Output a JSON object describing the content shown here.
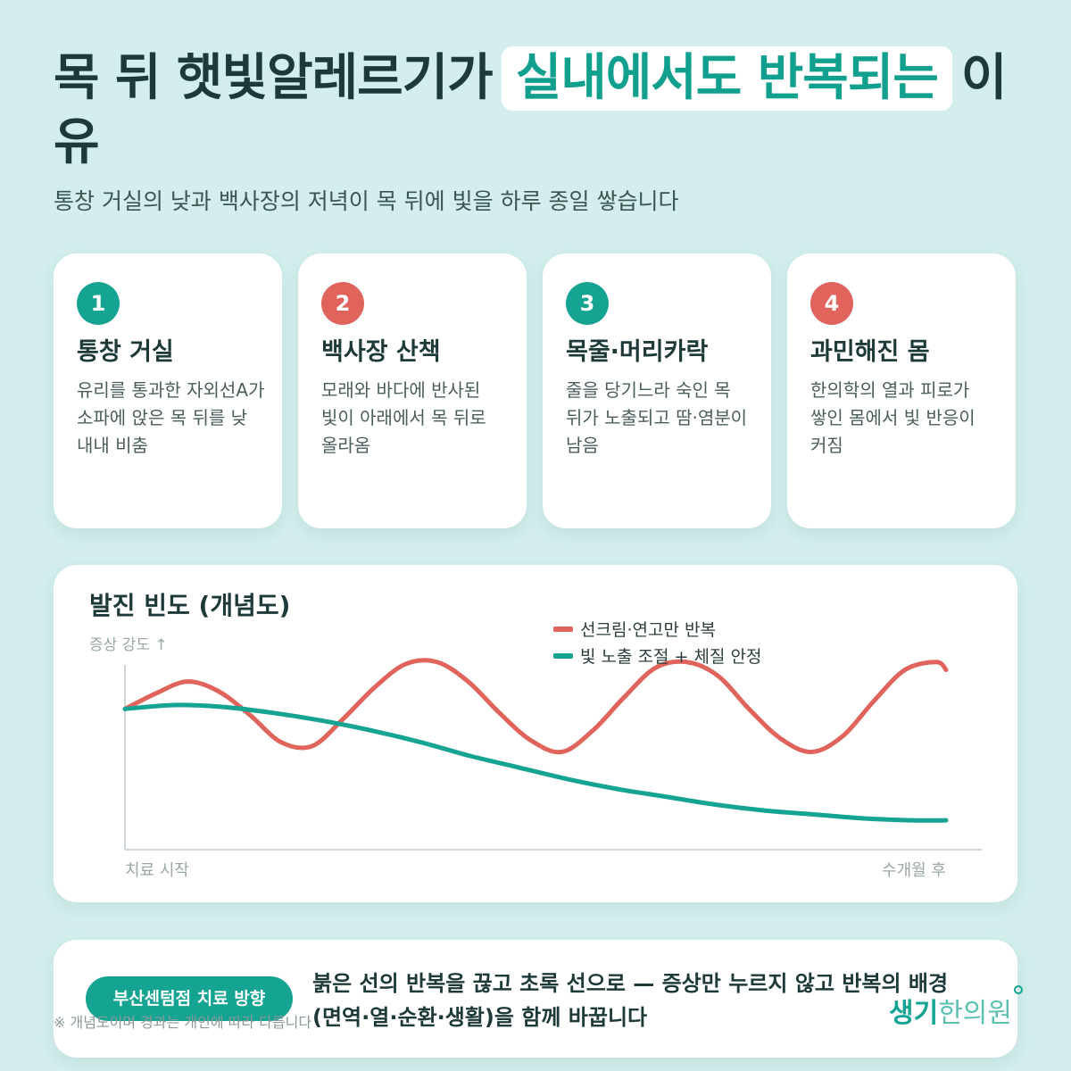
{
  "header": {
    "title_before": "목 뒤 햇빛알레르기가",
    "title_highlight": "실내에서도 반복되는",
    "title_after": "이유",
    "subtitle": "통창 거실의 낮과 백사장의 저녁이 목 뒤에 빛을 하루 종일 쌓습니다"
  },
  "cards": [
    {
      "number": "1",
      "title": "통창 거실",
      "desc": "유리를 통과한 자외선A가 소파에 앉은 목 뒤를 낮 내내 비춤",
      "color": "#15a392"
    },
    {
      "number": "2",
      "title": "백사장 산책",
      "desc": "모래와 바다에 반사된 빛이 아래에서 목 뒤로 올라옴",
      "color": "#e0635c"
    },
    {
      "number": "3",
      "title": "목줄·머리카락",
      "desc": "줄을 당기느라 숙인 목 뒤가 노출되고 땀·염분이 남음",
      "color": "#15a392"
    },
    {
      "number": "4",
      "title": "과민해진 몸",
      "desc": "한의학의 열과 피로가 쌓인 몸에서 빛 반응이 커짐",
      "color": "#e0635c"
    }
  ],
  "chart": {
    "title": "발진 빈도 (개념도)"
  },
  "chart_data": {
    "type": "line",
    "title": "발진 빈도 (개념도)",
    "ylabel": "증상 강도 ↑",
    "x_start_label": "치료 시작",
    "x_end_label": "수개월 후",
    "xlim": [
      0,
      1
    ],
    "ylim": [
      0,
      1
    ],
    "grid": false,
    "legend_position": "top-right",
    "series": [
      {
        "name": "선크림·연고만 반복",
        "color": "#e0635c",
        "x": [
          0,
          0.038,
          0.076,
          0.114,
          0.152,
          0.19,
          0.228,
          0.266,
          0.304,
          0.342,
          0.38,
          0.418,
          0.456,
          0.494,
          0.532,
          0.57,
          0.608,
          0.646,
          0.684,
          0.722,
          0.76,
          0.798,
          0.836,
          0.874,
          0.912,
          0.95,
          0.988,
          1.0
        ],
        "y": [
          0.72,
          0.8,
          0.86,
          0.81,
          0.69,
          0.55,
          0.53,
          0.67,
          0.83,
          0.95,
          0.96,
          0.86,
          0.7,
          0.56,
          0.5,
          0.61,
          0.78,
          0.93,
          0.96,
          0.89,
          0.72,
          0.57,
          0.5,
          0.58,
          0.76,
          0.92,
          0.96,
          0.92
        ]
      },
      {
        "name": "빛 노출 조절 + 체질 안정",
        "color": "#15a392",
        "x": [
          0,
          0.06,
          0.12,
          0.18,
          0.24,
          0.3,
          0.36,
          0.42,
          0.48,
          0.54,
          0.6,
          0.66,
          0.72,
          0.78,
          0.84,
          0.9,
          0.96,
          1.0
        ],
        "y": [
          0.72,
          0.74,
          0.73,
          0.7,
          0.66,
          0.61,
          0.55,
          0.48,
          0.42,
          0.36,
          0.31,
          0.27,
          0.23,
          0.2,
          0.18,
          0.16,
          0.15,
          0.15
        ]
      }
    ]
  },
  "bottom": {
    "pill": "부산센텀점 치료 방향",
    "text": "붉은 선의 반복을 끊고 초록 선으로 — 증상만 누르지 않고 반복의 배경(면역·열·순환·생활)을 함께 바꿉니다"
  },
  "note": "※ 개념도이며 경과는 개인에 따라 다릅니다",
  "logo": {
    "part1": "생기",
    "part2": "한의원"
  },
  "colors": {
    "accent": "#15a392",
    "red": "#e0635c",
    "background": "#d3eeec"
  }
}
